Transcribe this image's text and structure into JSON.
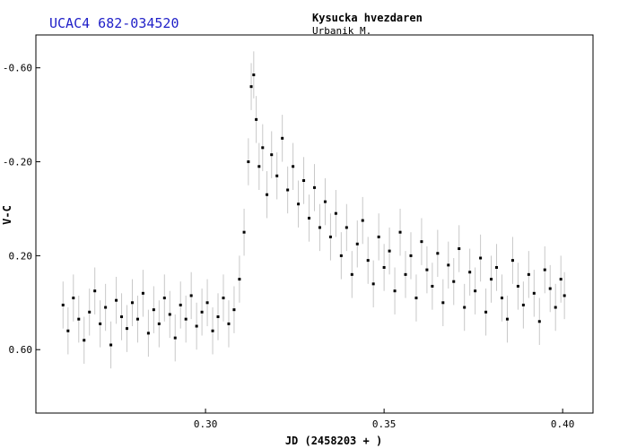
{
  "header": {
    "star_name": "UCAC4 682-034520",
    "observatory": "Kysucka hvezdaren",
    "observer": "Urbanik M."
  },
  "chart_data": {
    "type": "scatter",
    "xlabel": "JD (2458203 + )",
    "ylabel": "V-C",
    "xlim": [
      0.2525,
      0.4085
    ],
    "ylim": [
      0.87,
      -0.74
    ],
    "y_inverted": true,
    "grid": false,
    "x_ticks": [
      {
        "value": 0.3,
        "label": "0.30"
      },
      {
        "value": 0.35,
        "label": "0.35"
      },
      {
        "value": 0.4,
        "label": "0.40"
      }
    ],
    "y_ticks": [
      {
        "value": -0.6,
        "label": "-0.60"
      },
      {
        "value": -0.2,
        "label": "-0.20"
      },
      {
        "value": 0.2,
        "label": "0.20"
      },
      {
        "value": 0.6,
        "label": "0.60"
      }
    ],
    "marker_color": "#000000",
    "errorbar_color": "#c8c8c8",
    "error_typical": 0.1,
    "series": [
      {
        "x": [
          0.2601,
          0.2615,
          0.263,
          0.2645,
          0.266,
          0.2675,
          0.269,
          0.2705,
          0.272,
          0.2735,
          0.275,
          0.2765,
          0.278,
          0.2795,
          0.281,
          0.2825,
          0.284,
          0.2855,
          0.287,
          0.2885,
          0.29,
          0.2915,
          0.293,
          0.2945,
          0.296,
          0.2975,
          0.299,
          0.3005,
          0.302,
          0.3035,
          0.305,
          0.3065,
          0.308,
          0.3095,
          0.3108,
          0.312,
          0.3128,
          0.3135,
          0.3142,
          0.315,
          0.316,
          0.3172,
          0.3185,
          0.32,
          0.3215,
          0.323,
          0.3245,
          0.326,
          0.3275,
          0.329,
          0.3305,
          0.332,
          0.3335,
          0.335,
          0.3365,
          0.338,
          0.3395,
          0.341,
          0.3425,
          0.344,
          0.3455,
          0.347,
          0.3485,
          0.35,
          0.3515,
          0.353,
          0.3545,
          0.356,
          0.3575,
          0.359,
          0.3605,
          0.362,
          0.3635,
          0.365,
          0.3665,
          0.368,
          0.3695,
          0.371,
          0.3725,
          0.374,
          0.3755,
          0.377,
          0.3785,
          0.38,
          0.3815,
          0.383,
          0.3845,
          0.386,
          0.3875,
          0.389,
          0.3905,
          0.392,
          0.3935,
          0.395,
          0.3965,
          0.398,
          0.3995,
          0.4005
        ],
        "y": [
          0.41,
          0.52,
          0.38,
          0.47,
          0.56,
          0.44,
          0.35,
          0.49,
          0.42,
          0.58,
          0.39,
          0.46,
          0.51,
          0.4,
          0.47,
          0.36,
          0.53,
          0.43,
          0.49,
          0.38,
          0.45,
          0.55,
          0.41,
          0.47,
          0.37,
          0.5,
          0.44,
          0.4,
          0.52,
          0.46,
          0.38,
          0.49,
          0.43,
          0.3,
          0.1,
          -0.2,
          -0.52,
          -0.57,
          -0.38,
          -0.18,
          -0.26,
          -0.06,
          -0.23,
          -0.14,
          -0.3,
          -0.08,
          -0.18,
          -0.02,
          -0.12,
          0.04,
          -0.09,
          0.08,
          -0.03,
          0.12,
          0.02,
          0.2,
          0.08,
          0.28,
          0.15,
          0.05,
          0.22,
          0.32,
          0.12,
          0.25,
          0.18,
          0.35,
          0.1,
          0.28,
          0.2,
          0.38,
          0.14,
          0.26,
          0.33,
          0.19,
          0.4,
          0.24,
          0.31,
          0.17,
          0.42,
          0.27,
          0.35,
          0.21,
          0.44,
          0.3,
          0.25,
          0.38,
          0.47,
          0.22,
          0.33,
          0.41,
          0.28,
          0.36,
          0.48,
          0.26,
          0.34,
          0.42,
          0.3,
          0.37
        ]
      }
    ]
  }
}
